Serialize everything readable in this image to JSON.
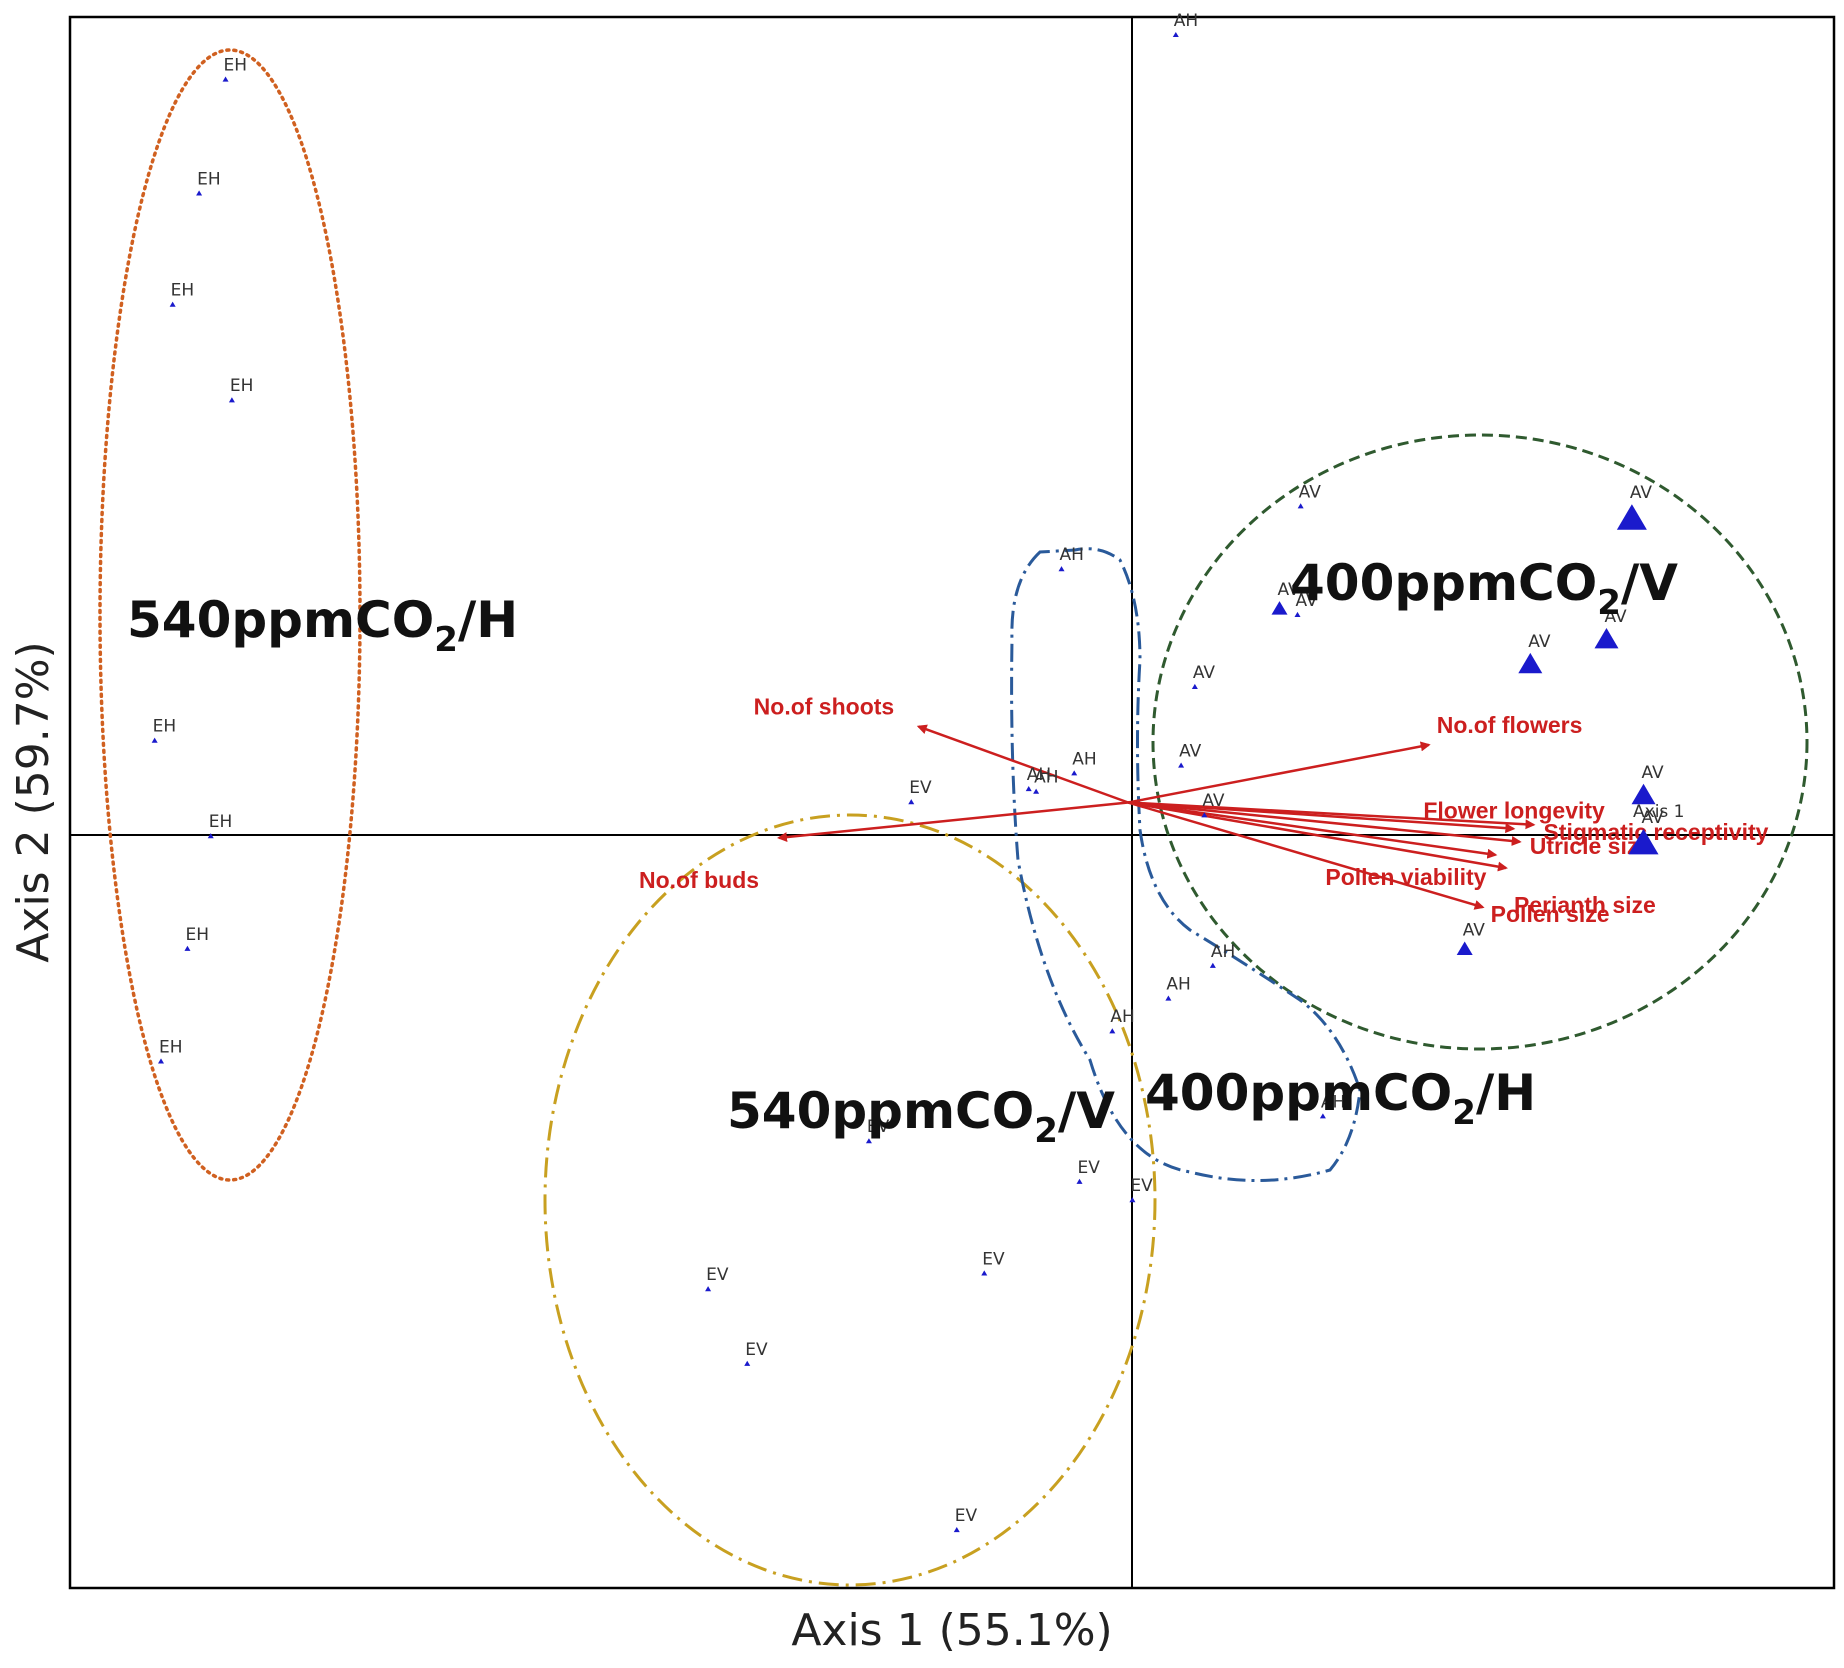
{
  "colors": {
    "frame": "#000000",
    "point": "#1a1acc",
    "vector": "#cc1f1f",
    "ellipse_540H": "#d06020",
    "ellipse_540V": "#c8a020",
    "ellipse_400V": "#2f5a2f",
    "ellipse_400H": "#2a5a9a"
  },
  "chart_data": {
    "type": "scatter",
    "xlabel": "Axis 1 (55.1%)",
    "ylabel": "Axis 2 (59.7%)",
    "xlim": [
      -1.0,
      0.667
    ],
    "ylim": [
      -0.6,
      0.6
    ],
    "origin_lines": true,
    "axis1_marker": "Axis 1",
    "points": [
      {
        "label": "EH",
        "x": -0.853,
        "y": 0.552,
        "size": 1
      },
      {
        "label": "EH",
        "x": -0.878,
        "y": 0.465,
        "size": 1
      },
      {
        "label": "EH",
        "x": -0.903,
        "y": 0.38,
        "size": 1
      },
      {
        "label": "EH",
        "x": -0.847,
        "y": 0.307,
        "size": 1
      },
      {
        "label": "EH",
        "x": -0.92,
        "y": 0.047,
        "size": 1
      },
      {
        "label": "EH",
        "x": -0.867,
        "y": -0.026,
        "size": 1
      },
      {
        "label": "EH",
        "x": -0.889,
        "y": -0.112,
        "size": 1
      },
      {
        "label": "EH",
        "x": -0.914,
        "y": -0.198,
        "size": 1
      },
      {
        "label": "AH",
        "x": 0.045,
        "y": 0.586,
        "size": 1
      },
      {
        "label": "AH",
        "x": -0.063,
        "y": 0.178,
        "size": 1
      },
      {
        "label": "AH",
        "x": -0.051,
        "y": 0.022,
        "size": 1
      },
      {
        "label": "AH",
        "x": -0.094,
        "y": 0.01,
        "size": 1
      },
      {
        "label": "AH",
        "x": -0.087,
        "y": 0.008,
        "size": 1
      },
      {
        "label": "AH",
        "x": 0.08,
        "y": -0.125,
        "size": 1
      },
      {
        "label": "AH",
        "x": 0.038,
        "y": -0.15,
        "size": 1
      },
      {
        "label": "AH",
        "x": -0.015,
        "y": -0.175,
        "size": 1
      },
      {
        "label": "AH",
        "x": 0.184,
        "y": -0.24,
        "size": 1
      },
      {
        "label": "AV",
        "x": 0.163,
        "y": 0.226,
        "size": 1
      },
      {
        "label": "AV",
        "x": 0.143,
        "y": 0.147,
        "size": 2
      },
      {
        "label": "AV",
        "x": 0.16,
        "y": 0.143,
        "size": 1
      },
      {
        "label": "AV",
        "x": 0.063,
        "y": 0.088,
        "size": 1
      },
      {
        "label": "AV",
        "x": 0.05,
        "y": 0.028,
        "size": 1
      },
      {
        "label": "AV",
        "x": 0.072,
        "y": -0.01,
        "size": 1
      },
      {
        "label": "AV",
        "x": 0.476,
        "y": 0.215,
        "size": 4
      },
      {
        "label": "AV",
        "x": 0.452,
        "y": 0.123,
        "size": 3
      },
      {
        "label": "AV",
        "x": 0.38,
        "y": 0.104,
        "size": 3
      },
      {
        "label": "AV",
        "x": 0.487,
        "y": 0.004,
        "size": 3
      },
      {
        "label": "AV",
        "x": 0.487,
        "y": -0.033,
        "size": 4
      },
      {
        "label": "AV",
        "x": 0.318,
        "y": -0.113,
        "size": 2
      },
      {
        "label": "EV",
        "x": -0.205,
        "y": 0.0,
        "size": 1
      },
      {
        "label": "EV",
        "x": -0.245,
        "y": -0.259,
        "size": 1
      },
      {
        "label": "EV",
        "x": -0.046,
        "y": -0.29,
        "size": 1
      },
      {
        "label": "EV",
        "x": 0.004,
        "y": -0.304,
        "size": 1
      },
      {
        "label": "EV",
        "x": -0.136,
        "y": -0.36,
        "size": 1
      },
      {
        "label": "EV",
        "x": -0.397,
        "y": -0.372,
        "size": 1
      },
      {
        "label": "EV",
        "x": -0.36,
        "y": -0.429,
        "size": 1
      },
      {
        "label": "EV",
        "x": -0.162,
        "y": -0.556,
        "size": 1
      }
    ],
    "vectors": [
      {
        "label": "No.of shoots",
        "x": -0.198,
        "y": 0.058
      },
      {
        "label": "No.of buds",
        "x": -0.33,
        "y": -0.027
      },
      {
        "label": "No.of flowers",
        "x": 0.284,
        "y": 0.044
      },
      {
        "label": "Flower longevity",
        "x": 0.364,
        "y": -0.02
      },
      {
        "label": "Stigmatic receptivity",
        "x": 0.383,
        "y": -0.017
      },
      {
        "label": "Utricle size",
        "x": 0.37,
        "y": -0.03
      },
      {
        "label": "Pollen viability",
        "x": 0.347,
        "y": -0.04
      },
      {
        "label": "Perianth size",
        "x": 0.357,
        "y": -0.05
      },
      {
        "label": "Pollen size",
        "x": 0.335,
        "y": -0.08
      }
    ],
    "groups": [
      {
        "id": "g540H",
        "base": "540ppmCO",
        "sub": "2",
        "tail": "/H",
        "color_key": "ellipse_540H"
      },
      {
        "id": "g540V",
        "base": "540ppmCO",
        "sub": "2",
        "tail": "/V",
        "color_key": "ellipse_540V"
      },
      {
        "id": "g400V",
        "base": "400ppmCO",
        "sub": "2",
        "tail": "/V",
        "color_key": "ellipse_400V"
      },
      {
        "id": "g400H",
        "base": "400ppmCO",
        "sub": "2",
        "tail": "/H",
        "color_key": "ellipse_400H"
      }
    ]
  }
}
